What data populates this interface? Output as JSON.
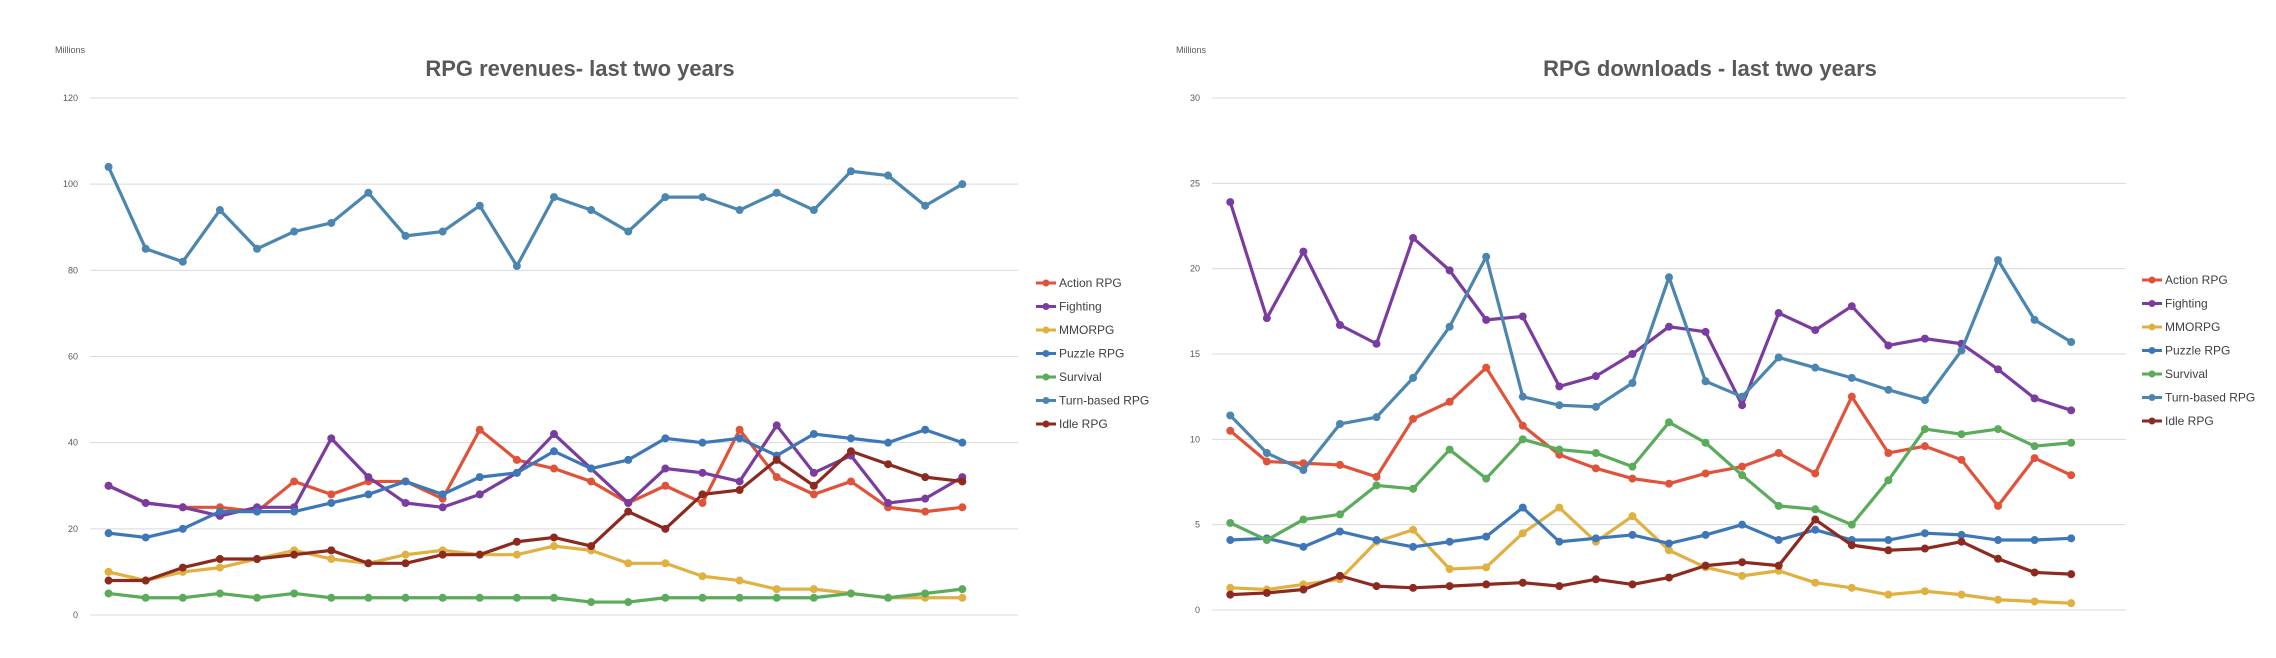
{
  "chart_data": [
    {
      "type": "line",
      "title": "RPG revenues- last two years",
      "ylabel": "Millions",
      "xlabel": "",
      "ylim": [
        0,
        120
      ],
      "yticks": [
        "0",
        "20",
        "40",
        "60",
        "80",
        "100",
        "120"
      ],
      "grid": true,
      "legend": "right",
      "x": [
        1,
        2,
        3,
        4,
        5,
        6,
        7,
        8,
        9,
        10,
        11,
        12,
        13,
        14,
        15,
        16,
        17,
        18,
        19,
        20,
        21,
        22,
        23,
        24,
        25
      ],
      "series": [
        {
          "name": "Action RPG",
          "color": "#e0533a",
          "values": [
            30,
            26,
            25,
            25,
            24,
            31,
            28,
            31,
            31,
            27,
            43,
            36,
            34,
            31,
            26,
            30,
            26,
            43,
            32,
            28,
            31,
            25,
            24,
            25,
            null
          ]
        },
        {
          "name": "Fighting",
          "color": "#7a3c9e",
          "values": [
            30,
            26,
            25,
            23,
            25,
            25,
            41,
            32,
            26,
            25,
            28,
            33,
            42,
            34,
            26,
            34,
            33,
            31,
            44,
            33,
            37,
            26,
            27,
            32,
            null
          ]
        },
        {
          "name": "MMORPG",
          "color": "#e0b040",
          "values": [
            10,
            8,
            10,
            11,
            13,
            15,
            13,
            12,
            14,
            15,
            14,
            14,
            16,
            15,
            12,
            12,
            9,
            8,
            6,
            6,
            5,
            4,
            4,
            4,
            null
          ]
        },
        {
          "name": "Puzzle RPG",
          "color": "#3e77b8",
          "values": [
            19,
            18,
            20,
            24,
            24,
            24,
            26,
            28,
            31,
            28,
            32,
            33,
            38,
            34,
            36,
            41,
            40,
            41,
            37,
            42,
            41,
            40,
            43,
            40,
            null
          ]
        },
        {
          "name": "Survival",
          "color": "#5aab5a",
          "values": [
            5,
            4,
            4,
            5,
            4,
            5,
            4,
            4,
            4,
            4,
            4,
            4,
            4,
            3,
            3,
            4,
            4,
            4,
            4,
            4,
            5,
            4,
            5,
            6,
            null
          ]
        },
        {
          "name": "Turn-based RPG",
          "color": "#4a86b0",
          "values": [
            104,
            85,
            82,
            94,
            85,
            89,
            91,
            98,
            88,
            89,
            95,
            81,
            97,
            94,
            89,
            97,
            97,
            94,
            98,
            94,
            103,
            102,
            95,
            100,
            null
          ]
        },
        {
          "name": "Idle RPG",
          "color": "#8c2a20",
          "values": [
            8,
            8,
            11,
            13,
            13,
            14,
            15,
            12,
            12,
            14,
            14,
            17,
            18,
            16,
            24,
            20,
            28,
            29,
            36,
            30,
            38,
            35,
            32,
            31,
            null
          ]
        }
      ]
    },
    {
      "type": "line",
      "title": "RPG downloads - last two years",
      "ylabel": "Millions",
      "xlabel": "",
      "ylim": [
        0,
        30
      ],
      "yticks": [
        "0",
        "5",
        "10",
        "15",
        "20",
        "25",
        "30"
      ],
      "grid": true,
      "legend": "right",
      "x": [
        1,
        2,
        3,
        4,
        5,
        6,
        7,
        8,
        9,
        10,
        11,
        12,
        13,
        14,
        15,
        16,
        17,
        18,
        19,
        20,
        21,
        22,
        23,
        24,
        25
      ],
      "series": [
        {
          "name": "Action RPG",
          "color": "#e0533a",
          "values": [
            10.5,
            8.7,
            8.6,
            8.5,
            7.8,
            11.2,
            12.2,
            14.2,
            10.8,
            9.1,
            8.3,
            7.7,
            7.4,
            8.0,
            8.4,
            9.2,
            8.0,
            12.5,
            9.2,
            9.6,
            8.8,
            6.1,
            8.9,
            7.9,
            null
          ]
        },
        {
          "name": "Fighting",
          "color": "#7a3c9e",
          "values": [
            23.9,
            17.1,
            21.0,
            16.7,
            15.6,
            21.8,
            19.9,
            17.0,
            17.2,
            13.1,
            13.7,
            15.0,
            16.6,
            16.3,
            12.0,
            17.4,
            16.4,
            17.8,
            15.5,
            15.9,
            15.6,
            14.1,
            12.4,
            11.7,
            null
          ]
        },
        {
          "name": "MMORPG",
          "color": "#e0b040",
          "values": [
            1.3,
            1.2,
            1.5,
            1.8,
            4.0,
            4.7,
            2.4,
            2.5,
            4.5,
            6.0,
            4.0,
            5.5,
            3.5,
            2.5,
            2.0,
            2.3,
            1.6,
            1.3,
            0.9,
            1.1,
            0.9,
            0.6,
            0.5,
            0.4,
            null
          ]
        },
        {
          "name": "Puzzle RPG",
          "color": "#3e77b8",
          "values": [
            4.1,
            4.2,
            3.7,
            4.6,
            4.1,
            3.7,
            4.0,
            4.3,
            6.0,
            4.0,
            4.2,
            4.4,
            3.9,
            4.4,
            5.0,
            4.1,
            4.7,
            4.1,
            4.1,
            4.5,
            4.4,
            4.1,
            4.1,
            4.2,
            null
          ]
        },
        {
          "name": "Survival",
          "color": "#5aab5a",
          "values": [
            5.1,
            4.1,
            5.3,
            5.6,
            7.3,
            7.1,
            9.4,
            7.7,
            10.0,
            9.4,
            9.2,
            8.4,
            11.0,
            9.8,
            7.9,
            6.1,
            5.9,
            5.0,
            7.6,
            10.6,
            10.3,
            10.6,
            9.6,
            9.8,
            null
          ]
        },
        {
          "name": "Turn-based RPG",
          "color": "#4a86b0",
          "values": [
            11.4,
            9.2,
            8.2,
            10.9,
            11.3,
            13.6,
            16.6,
            20.7,
            12.5,
            12.0,
            11.9,
            13.3,
            19.5,
            13.4,
            12.5,
            14.8,
            14.2,
            13.6,
            12.9,
            12.3,
            15.2,
            20.5,
            17.0,
            15.7,
            null
          ]
        },
        {
          "name": "Idle RPG",
          "color": "#8c2a20",
          "values": [
            0.9,
            1.0,
            1.2,
            2.0,
            1.4,
            1.3,
            1.4,
            1.5,
            1.6,
            1.4,
            1.8,
            1.5,
            1.9,
            2.6,
            2.8,
            2.6,
            5.3,
            3.8,
            3.5,
            3.6,
            4.0,
            3.0,
            2.2,
            2.1,
            null
          ]
        }
      ]
    }
  ]
}
